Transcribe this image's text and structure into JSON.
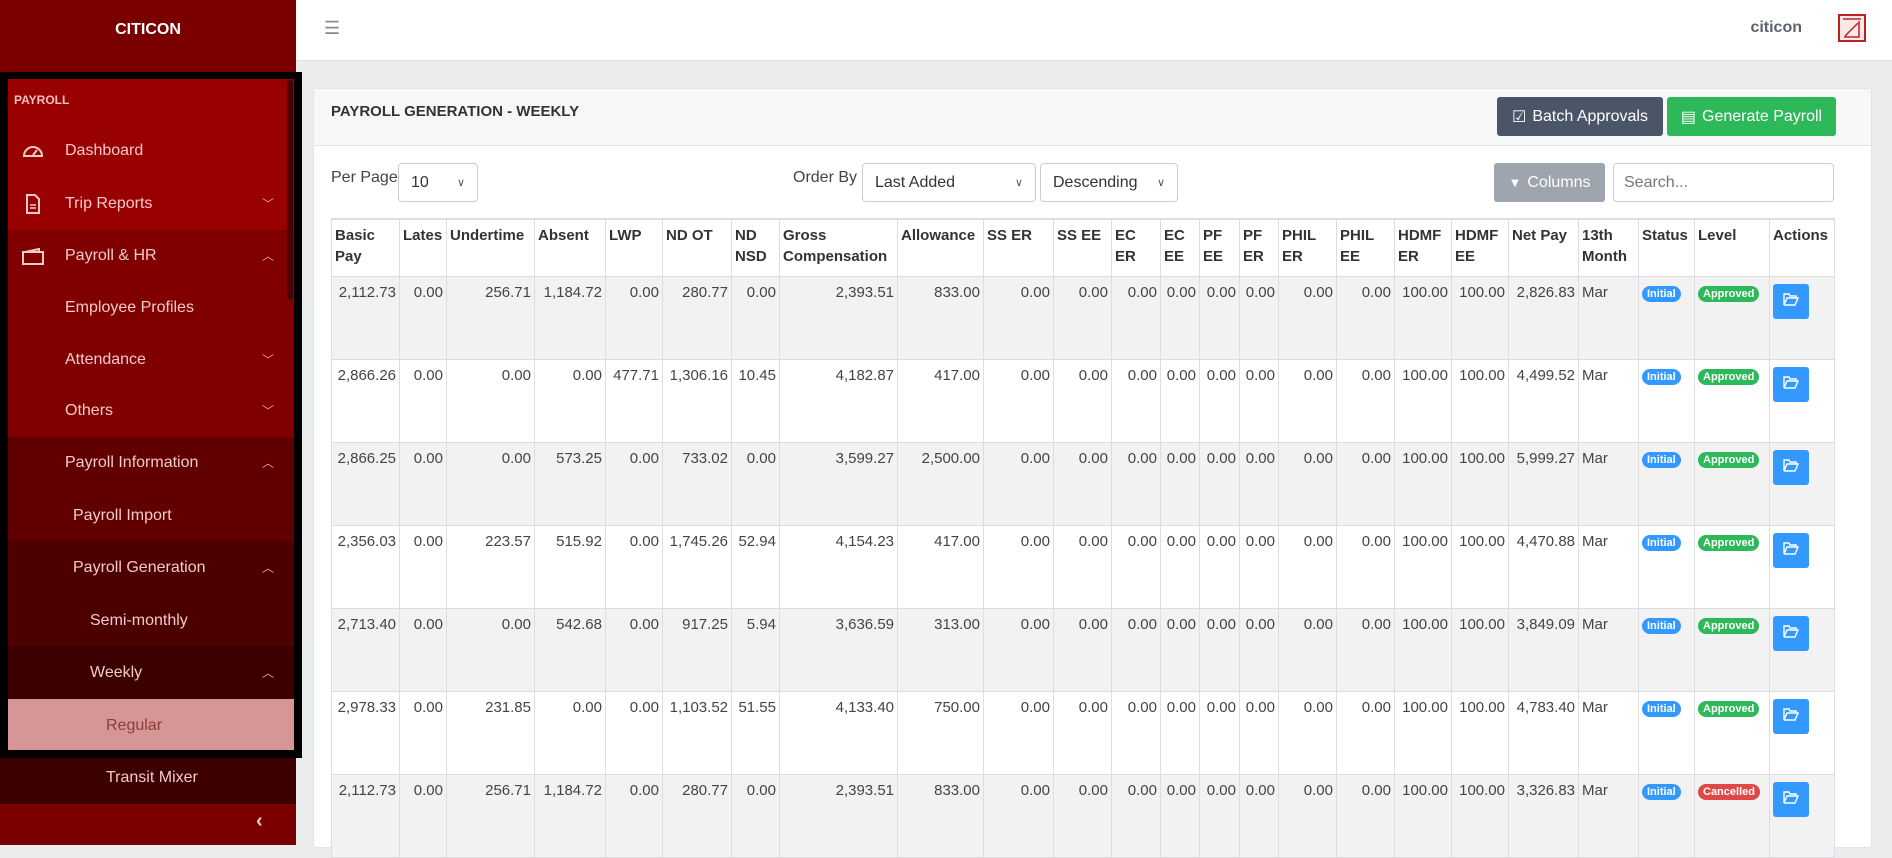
{
  "sidebar": {
    "brand": "CITICON",
    "section": "PAYROLL",
    "items": [
      {
        "label": "Dashboard",
        "icon": "dashboard-gauge-icon"
      },
      {
        "label": "Trip Reports",
        "icon": "document-icon"
      },
      {
        "label": "Payroll & HR",
        "icon": "wallet-icon"
      },
      {
        "label": "Employee Profiles"
      },
      {
        "label": "Attendance"
      },
      {
        "label": "Others"
      },
      {
        "label": "Payroll Information"
      },
      {
        "label": "Payroll Import"
      },
      {
        "label": "Payroll Generation"
      },
      {
        "label": "Semi-monthly"
      },
      {
        "label": "Weekly"
      },
      {
        "label": "Regular"
      },
      {
        "label": "Transit Mixer"
      }
    ],
    "active": "Regular"
  },
  "topbar": {
    "user": "citicon"
  },
  "card": {
    "title": "PAYROLL GENERATION - WEEKLY",
    "batch_label": "Batch Approvals",
    "generate_label": "Generate Payroll",
    "per_page_label": "Per Page",
    "per_page_value": "10",
    "order_by_label": "Order By",
    "order_by_value": "Last Added",
    "direction_value": "Descending",
    "columns_label": "Columns",
    "search_placeholder": "Search..."
  },
  "colors": {
    "primary": "#990000",
    "success": "#2db85a",
    "info": "#3399ff",
    "danger": "#e04848",
    "dark": "#4b5568"
  },
  "table": {
    "headers": [
      "Basic Pay",
      "Lates",
      "Undertime",
      "Absent",
      "LWP",
      "ND OT",
      "ND NSD",
      "Gross Compensation",
      "Allowance",
      "SS ER",
      "SS EE",
      "EC ER",
      "EC EE",
      "PF EE",
      "PF ER",
      "PHIL ER",
      "PHIL EE",
      "HDMF ER",
      "HDMF EE",
      "Net Pay",
      "13th Month",
      "Status",
      "Level",
      "Actions"
    ],
    "rows": [
      {
        "values": [
          "2,112.73",
          "0.00",
          "256.71",
          "1,184.72",
          "0.00",
          "280.77",
          "0.00",
          "2,393.51",
          "833.00",
          "0.00",
          "0.00",
          "0.00",
          "0.00",
          "0.00",
          "0.00",
          "0.00",
          "0.00",
          "100.00",
          "100.00",
          "2,826.83",
          "Mar"
        ],
        "status": "Initial",
        "level": "Approved"
      },
      {
        "values": [
          "2,866.26",
          "0.00",
          "0.00",
          "0.00",
          "477.71",
          "1,306.16",
          "10.45",
          "4,182.87",
          "417.00",
          "0.00",
          "0.00",
          "0.00",
          "0.00",
          "0.00",
          "0.00",
          "0.00",
          "0.00",
          "100.00",
          "100.00",
          "4,499.52",
          "Mar"
        ],
        "status": "Initial",
        "level": "Approved"
      },
      {
        "values": [
          "2,866.25",
          "0.00",
          "0.00",
          "573.25",
          "0.00",
          "733.02",
          "0.00",
          "3,599.27",
          "2,500.00",
          "0.00",
          "0.00",
          "0.00",
          "0.00",
          "0.00",
          "0.00",
          "0.00",
          "0.00",
          "100.00",
          "100.00",
          "5,999.27",
          "Mar"
        ],
        "status": "Initial",
        "level": "Approved"
      },
      {
        "values": [
          "2,356.03",
          "0.00",
          "223.57",
          "515.92",
          "0.00",
          "1,745.26",
          "52.94",
          "4,154.23",
          "417.00",
          "0.00",
          "0.00",
          "0.00",
          "0.00",
          "0.00",
          "0.00",
          "0.00",
          "0.00",
          "100.00",
          "100.00",
          "4,470.88",
          "Mar"
        ],
        "status": "Initial",
        "level": "Approved"
      },
      {
        "values": [
          "2,713.40",
          "0.00",
          "0.00",
          "542.68",
          "0.00",
          "917.25",
          "5.94",
          "3,636.59",
          "313.00",
          "0.00",
          "0.00",
          "0.00",
          "0.00",
          "0.00",
          "0.00",
          "0.00",
          "0.00",
          "100.00",
          "100.00",
          "3,849.09",
          "Mar"
        ],
        "status": "Initial",
        "level": "Approved"
      },
      {
        "values": [
          "2,978.33",
          "0.00",
          "231.85",
          "0.00",
          "0.00",
          "1,103.52",
          "51.55",
          "4,133.40",
          "750.00",
          "0.00",
          "0.00",
          "0.00",
          "0.00",
          "0.00",
          "0.00",
          "0.00",
          "0.00",
          "100.00",
          "100.00",
          "4,783.40",
          "Mar"
        ],
        "status": "Initial",
        "level": "Approved"
      },
      {
        "values": [
          "2,112.73",
          "0.00",
          "256.71",
          "1,184.72",
          "0.00",
          "280.77",
          "0.00",
          "2,393.51",
          "833.00",
          "0.00",
          "0.00",
          "0.00",
          "0.00",
          "0.00",
          "0.00",
          "0.00",
          "0.00",
          "100.00",
          "100.00",
          "3,326.83",
          "Mar"
        ],
        "status": "Initial",
        "level": "Cancelled"
      }
    ]
  }
}
